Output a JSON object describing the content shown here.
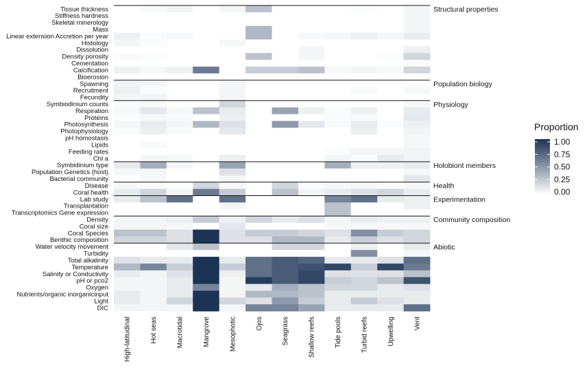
{
  "chart_data": {
    "type": "heatmap",
    "title": "",
    "xlabel": "",
    "ylabel": "",
    "columns": [
      "High-latitudinal",
      "Hot seas",
      "Macrotidal",
      "Mangrove",
      "Mesophotic",
      "Ojos",
      "Seagrass",
      "Shallow reefs",
      "Tide pools",
      "Turbid reefs",
      "Upwelling",
      "Vent"
    ],
    "rows": [
      "Tissue thickness",
      "Stiffness hardness",
      "Skeletal minerology",
      "Mass",
      "Linear extension Accretion per year",
      "Histology",
      "Dissolution",
      "Density porosity",
      "Cementation",
      "Calcification",
      "Bioerosion",
      "Spawning",
      "Recruitment",
      "Fecundity",
      "Symbiodinium counts",
      "Respiration",
      "Proteins",
      "Photosynthesis",
      "Photophysiology",
      "pH homostasis",
      "Lipids",
      "Feeding rates",
      "Chl a",
      "Symbidinium type",
      "Population Genetics (host)",
      "Bacterial community",
      "Disease",
      "Coral health",
      "Lab study",
      "Transplantation",
      "Transcriptomics Gene expression",
      "Density",
      "Coral size",
      "Coral Species",
      "Benthic composition",
      "Water velocity movement",
      "Turbidity",
      "Total alkalinity",
      "Temperature",
      "Salinity or Conductivity",
      "pH or pco2",
      "Oxygen",
      "Nutrients/organic inorganicinput",
      "Light",
      "DIC"
    ],
    "values": [
      [
        0,
        0.03,
        0.06,
        0,
        0.05,
        0.3,
        0,
        0,
        0,
        0.02,
        0,
        0.05
      ],
      [
        0,
        0,
        0,
        0,
        0,
        0,
        0,
        0,
        0,
        0,
        0,
        0.05
      ],
      [
        0,
        0,
        0,
        0,
        0,
        0,
        0,
        0,
        0,
        0,
        0,
        0.05
      ],
      [
        0,
        0,
        0,
        0,
        0,
        0.35,
        0,
        0,
        0,
        0,
        0,
        0.05
      ],
      [
        0.08,
        0.02,
        0.04,
        0,
        0,
        0.35,
        0,
        0.04,
        0.05,
        0.08,
        0.05,
        0.1
      ],
      [
        0.05,
        0.02,
        0,
        0,
        0.04,
        0,
        0,
        0,
        0,
        0,
        0,
        0
      ],
      [
        0,
        0,
        0,
        0,
        0,
        0,
        0,
        0.05,
        0,
        0,
        0,
        0.08
      ],
      [
        0.03,
        0.02,
        0,
        0,
        0,
        0.3,
        0,
        0.05,
        0,
        0,
        0.02,
        0.2
      ],
      [
        0,
        0,
        0,
        0,
        0,
        0,
        0,
        0,
        0,
        0,
        0,
        0.02
      ],
      [
        0.08,
        0.04,
        0.08,
        0.65,
        0,
        0.25,
        0.25,
        0.3,
        0.03,
        0.06,
        0.03,
        0.2
      ],
      [
        0,
        0,
        0,
        0,
        0,
        0,
        0,
        0,
        0,
        0,
        0,
        0
      ],
      [
        0.06,
        0.05,
        0,
        0,
        0.05,
        0,
        0,
        0,
        0,
        0,
        0,
        0
      ],
      [
        0.08,
        0.02,
        0,
        0,
        0.05,
        0,
        0,
        0,
        0,
        0.03,
        0,
        0.04
      ],
      [
        0.05,
        0.06,
        0,
        0,
        0.05,
        0,
        0,
        0,
        0,
        0,
        0,
        0
      ],
      [
        0.02,
        0.03,
        0,
        0,
        0.2,
        0,
        0,
        0,
        0,
        0,
        0,
        0.04
      ],
      [
        0.04,
        0.12,
        0.04,
        0.3,
        0.1,
        0,
        0.45,
        0.08,
        0.02,
        0.08,
        0,
        0.1
      ],
      [
        0.02,
        0.04,
        0.03,
        0,
        0.08,
        0,
        0,
        0,
        0.02,
        0.03,
        0,
        0.12
      ],
      [
        0.05,
        0.1,
        0.05,
        0.35,
        0.15,
        0,
        0.5,
        0.12,
        0.03,
        0.1,
        0.02,
        0.08
      ],
      [
        0.02,
        0.08,
        0.03,
        0,
        0.12,
        0,
        0,
        0,
        0,
        0.08,
        0,
        0.06
      ],
      [
        0,
        0,
        0,
        0,
        0,
        0,
        0,
        0,
        0,
        0,
        0,
        0.04
      ],
      [
        0,
        0.03,
        0,
        0,
        0,
        0,
        0,
        0,
        0,
        0,
        0,
        0.04
      ],
      [
        0,
        0,
        0,
        0,
        0,
        0,
        0,
        0,
        0.02,
        0.05,
        0.05,
        0.06
      ],
      [
        0,
        0.05,
        0.04,
        0,
        0.08,
        0,
        0,
        0,
        0.05,
        0.02,
        0.1,
        0.06
      ],
      [
        0.1,
        0.4,
        0.05,
        0,
        0.45,
        0,
        0,
        0,
        0.4,
        0.08,
        0.08,
        0.1
      ],
      [
        0.04,
        0.05,
        0,
        0,
        0.15,
        0,
        0,
        0,
        0,
        0,
        0,
        0.04
      ],
      [
        0,
        0.04,
        0,
        0,
        0.05,
        0,
        0,
        0,
        0,
        0,
        0,
        0.12
      ],
      [
        0.04,
        0.02,
        0,
        0.2,
        0.04,
        0,
        0.2,
        0.02,
        0.04,
        0.04,
        0.02,
        0.04
      ],
      [
        0.1,
        0.2,
        0.05,
        0.65,
        0.25,
        0,
        0.3,
        0.06,
        0.1,
        0.15,
        0.2,
        0.1
      ],
      [
        0.1,
        0.3,
        0.7,
        0,
        0.7,
        0,
        0,
        0,
        0.6,
        0.7,
        0.1,
        0.08
      ],
      [
        0,
        0,
        0,
        0,
        0.05,
        0,
        0,
        0,
        0.3,
        0,
        0,
        0.08
      ],
      [
        0,
        0,
        0,
        0,
        0,
        0,
        0,
        0,
        0.3,
        0,
        0,
        0
      ],
      [
        0.05,
        0.05,
        0.08,
        0.25,
        0.08,
        0.2,
        0.1,
        0.15,
        0.05,
        0.1,
        0.08,
        0.08
      ],
      [
        0.05,
        0.05,
        0.04,
        0,
        0.12,
        0,
        0,
        0,
        0.04,
        0.04,
        0.04,
        0.04
      ],
      [
        0.3,
        0.3,
        0.15,
        1,
        0.15,
        0.25,
        0.25,
        0.2,
        0.15,
        0.55,
        0.25,
        0.2
      ],
      [
        0.2,
        0.2,
        0.15,
        1,
        0.15,
        0.15,
        0.35,
        0.35,
        0.1,
        0.25,
        0.15,
        0.2
      ],
      [
        0,
        0,
        0.12,
        0.3,
        0,
        0,
        0.2,
        0.2,
        0,
        0.08,
        0,
        0.1
      ],
      [
        0,
        0,
        0,
        0,
        0,
        0,
        0,
        0,
        0,
        0.55,
        0,
        0.04
      ],
      [
        0.15,
        0.1,
        0.1,
        1,
        0.1,
        0.7,
        0.8,
        0.75,
        0.1,
        0.1,
        0.15,
        0.7
      ],
      [
        0.35,
        0.6,
        0.25,
        1,
        0.25,
        0.7,
        0.8,
        0.85,
        0.9,
        0.25,
        0.9,
        0.65
      ],
      [
        0.1,
        0.06,
        0.15,
        1,
        0.08,
        0.7,
        0.8,
        0.9,
        0.15,
        0.15,
        0.15,
        0.3
      ],
      [
        0.05,
        0.05,
        0.1,
        1,
        0.05,
        0.95,
        0.8,
        0.9,
        0.25,
        0.2,
        0.3,
        0.85
      ],
      [
        0.05,
        0.05,
        0.1,
        0.6,
        0.05,
        0.1,
        0.4,
        0.3,
        0.2,
        0.2,
        0.1,
        0.15
      ],
      [
        0.1,
        0.05,
        0.1,
        1,
        0.05,
        0.35,
        0.35,
        0.3,
        0.1,
        0.1,
        0.1,
        0.1
      ],
      [
        0.1,
        0.05,
        0.2,
        1,
        0.2,
        0.15,
        0.5,
        0.25,
        0.1,
        0.25,
        0.15,
        0.1
      ],
      [
        0.05,
        0.05,
        0.05,
        1,
        0.05,
        0.6,
        0.6,
        0.45,
        0.1,
        0.1,
        0.1,
        0.7
      ]
    ],
    "groups": [
      {
        "label": "Structural properties",
        "first_row": 0
      },
      {
        "label": "Population biology",
        "first_row": 11
      },
      {
        "label": "Physiology",
        "first_row": 14
      },
      {
        "label": "Holobiont members",
        "first_row": 23
      },
      {
        "label": "Health",
        "first_row": 26
      },
      {
        "label": "Experimentation",
        "first_row": 28
      },
      {
        "label": "Community composition",
        "first_row": 31
      },
      {
        "label": "Abiotic",
        "first_row": 35
      }
    ],
    "legend": {
      "title": "Proportion",
      "ticks": [
        "1.00",
        "0.75",
        "0.50",
        "0.25",
        "0.00"
      ],
      "range": [
        0,
        1
      ],
      "low_color": "#ffffff",
      "high_color": "#1b3355"
    }
  }
}
